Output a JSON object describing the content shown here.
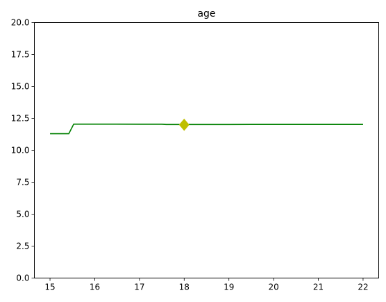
{
  "chart_data": {
    "type": "line",
    "title": "age",
    "xlabel": "",
    "ylabel": "",
    "xlim": [
      14.65,
      22.35
    ],
    "ylim": [
      0,
      20
    ],
    "x_ticks": [
      15,
      16,
      17,
      18,
      19,
      20,
      21,
      22
    ],
    "x_tick_labels": [
      "15",
      "16",
      "17",
      "18",
      "19",
      "20",
      "21",
      "22"
    ],
    "y_ticks": [
      0,
      2.5,
      5,
      7.5,
      10,
      12.5,
      15,
      17.5,
      20
    ],
    "y_tick_labels": [
      "0.0",
      "2.5",
      "5.0",
      "7.5",
      "10.0",
      "12.5",
      "15.0",
      "17.5",
      "20.0"
    ],
    "grid": false,
    "legend": "none",
    "series": [
      {
        "color": "#008000",
        "x": [
          15.0,
          15.42,
          15.53,
          16.0,
          16.5,
          17.0,
          17.5,
          17.6,
          18.0,
          18.5,
          19.0,
          19.5,
          20.0,
          20.5,
          21.0,
          21.5,
          22.0
        ],
        "y": [
          11.3,
          11.3,
          12.05,
          12.05,
          12.05,
          12.04,
          12.04,
          12.02,
          12.02,
          12.02,
          12.02,
          12.03,
          12.03,
          12.03,
          12.03,
          12.03,
          12.03
        ]
      }
    ],
    "markers": [
      {
        "shape": "diamond",
        "color": "#bfbf00",
        "x": 18.0,
        "y": 12.0
      }
    ]
  }
}
